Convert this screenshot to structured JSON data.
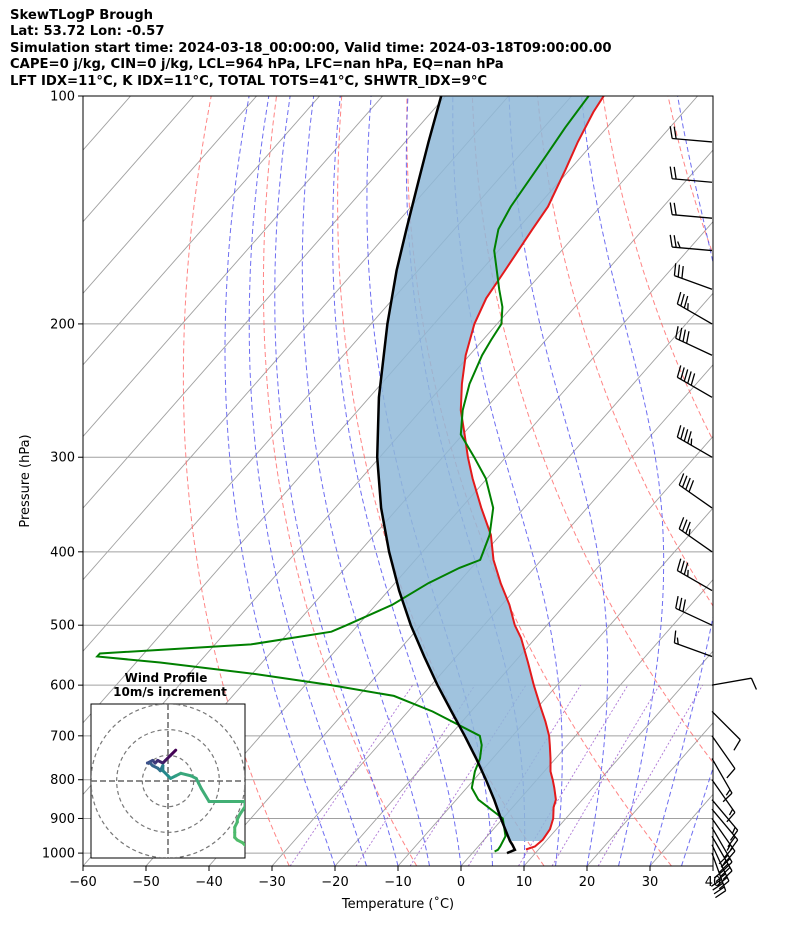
{
  "header": {
    "line1": "SkewTLogP Brough",
    "line2": "Lat: 53.72   Lon: -0.57",
    "line3": "Simulation start time: 2024-03-18_00:00:00, Valid time: 2024-03-18T09:00:00.00",
    "line4": "CAPE=0 j/kg, CIN=0 j/kg, LCL=964 hPa, LFC=nan hPa, EQ=nan hPa",
    "line5": "LFT IDX=11°C, K IDX=11°C, TOTAL TOTS=41°C, SHWTR_IDX=9°C"
  },
  "colors": {
    "temperature": "#e31a1c",
    "dewpoint": "#008000",
    "parcel": "#000000",
    "cape_fill": "#8fb8d8",
    "dry_adiabat": "#ff6666",
    "moist_adiabat": "#5555ee",
    "mixing_ratio": "#9955cc",
    "isotherm": "#a0a0a0",
    "isobar": "#a0a0a0"
  },
  "chart_data": [
    {
      "type": "line",
      "chart_kind": "skew-T log-P",
      "xlabel": "Temperature (˚C)",
      "ylabel": "Pressure (hPa)",
      "xlim": [
        -60,
        40
      ],
      "ylim": [
        1040,
        100
      ],
      "y_scale": "log",
      "x_ticks": [
        "−60",
        "−50",
        "−40",
        "−30",
        "−20",
        "−10",
        "0",
        "10",
        "20",
        "30",
        "40"
      ],
      "x_tick_values": [
        -60,
        -50,
        -40,
        -30,
        -20,
        -10,
        0,
        10,
        20,
        30,
        40
      ],
      "y_ticks": [
        "100",
        "200",
        "300",
        "400",
        "500",
        "600",
        "700",
        "800",
        "900",
        "1000"
      ],
      "y_tick_values": [
        100,
        200,
        300,
        400,
        500,
        600,
        700,
        800,
        900,
        1000
      ],
      "grid": true,
      "series": [
        {
          "key": "temperature",
          "pressure": [
            989,
            980,
            960,
            930,
            900,
            870,
            850,
            820,
            800,
            780,
            750,
            720,
            700,
            670,
            640,
            600,
            560,
            520,
            500,
            470,
            440,
            410,
            380,
            350,
            320,
            300,
            280,
            260,
            240,
            220,
            200,
            185,
            170,
            150,
            140,
            125,
            115,
            105,
            100
          ],
          "temperature": [
            8.0,
            9.0,
            9.3,
            9.0,
            8.0,
            6.5,
            5.8,
            3.9,
            2.5,
            1.0,
            -0.8,
            -2.8,
            -4.2,
            -6.8,
            -9.7,
            -13.7,
            -17.8,
            -22.3,
            -25.1,
            -28.8,
            -33.2,
            -37.6,
            -41.5,
            -46.8,
            -52.3,
            -56.0,
            -59.7,
            -63.7,
            -67.2,
            -70.6,
            -73.6,
            -75.3,
            -76.2,
            -77.6,
            -78.3,
            -80.7,
            -82.6,
            -84.3,
            -84.9
          ]
        },
        {
          "key": "dewpoint",
          "pressure": [
            995,
            990,
            980,
            950,
            900,
            850,
            820,
            780,
            750,
            720,
            700,
            650,
            620,
            600,
            580,
            560,
            550,
            545,
            530,
            510,
            500,
            470,
            440,
            420,
            410,
            380,
            350,
            320,
            300,
            280,
            260,
            240,
            220,
            210,
            200,
            190,
            180,
            170,
            160,
            150,
            140,
            120,
            110,
            100
          ],
          "temperature": [
            3.3,
            3.6,
            3.5,
            2.9,
            0.0,
            -6.5,
            -9.2,
            -11.0,
            -12.0,
            -13.6,
            -15.2,
            -26.1,
            -34.4,
            -45.9,
            -59.5,
            -76.2,
            -87.0,
            -87.0,
            -64.3,
            -53.3,
            -51.8,
            -47.4,
            -44.7,
            -41.9,
            -39.7,
            -41.7,
            -44.9,
            -50.2,
            -55.0,
            -60.3,
            -63.4,
            -66.0,
            -68.0,
            -68.7,
            -69.3,
            -71.5,
            -74.5,
            -77.5,
            -80.7,
            -83.0,
            -84.2,
            -85.7,
            -86.6,
            -87.3
          ]
        },
        {
          "key": "parcel",
          "pressure": [
            1000,
            990,
            975,
            964,
            950,
            900,
            850,
            800,
            750,
            700,
            650,
            600,
            550,
            500,
            450,
            400,
            350,
            300,
            250,
            200,
            170,
            150,
            130,
            115,
            100
          ],
          "temperature": [
            5.5,
            6.3,
            5.2,
            4.3,
            3.3,
            -0.3,
            -4.0,
            -8.1,
            -12.6,
            -17.6,
            -23.1,
            -29.0,
            -35.1,
            -41.6,
            -48.3,
            -55.3,
            -62.7,
            -70.4,
            -78.5,
            -87.4,
            -93.4,
            -97.6,
            -102.3,
            -106.3,
            -110.7
          ]
        }
      ],
      "wind_barbs_label": "wind barbs right edge (kt)",
      "wind_barbs": [
        {
          "p": 1000,
          "spd": 40,
          "dir": 160
        },
        {
          "p": 975,
          "spd": 40,
          "dir": 155
        },
        {
          "p": 950,
          "spd": 35,
          "dir": 150
        },
        {
          "p": 925,
          "spd": 30,
          "dir": 150
        },
        {
          "p": 900,
          "spd": 25,
          "dir": 145
        },
        {
          "p": 875,
          "spd": 20,
          "dir": 140
        },
        {
          "p": 850,
          "spd": 15,
          "dir": 140
        },
        {
          "p": 800,
          "spd": 15,
          "dir": 145
        },
        {
          "p": 750,
          "spd": 15,
          "dir": 150
        },
        {
          "p": 700,
          "spd": 10,
          "dir": 145
        },
        {
          "p": 650,
          "spd": 10,
          "dir": 135
        },
        {
          "p": 600,
          "spd": 10,
          "dir": 80
        },
        {
          "p": 550,
          "spd": 15,
          "dir": 290
        },
        {
          "p": 500,
          "spd": 30,
          "dir": 295
        },
        {
          "p": 450,
          "spd": 35,
          "dir": 300
        },
        {
          "p": 400,
          "spd": 35,
          "dir": 305
        },
        {
          "p": 350,
          "spd": 40,
          "dir": 305
        },
        {
          "p": 300,
          "spd": 45,
          "dir": 300
        },
        {
          "p": 250,
          "spd": 50,
          "dir": 300
        },
        {
          "p": 220,
          "spd": 40,
          "dir": 295
        },
        {
          "p": 200,
          "spd": 35,
          "dir": 300
        },
        {
          "p": 180,
          "spd": 30,
          "dir": 290
        },
        {
          "p": 160,
          "spd": 25,
          "dir": 275
        },
        {
          "p": 145,
          "spd": 20,
          "dir": 275
        },
        {
          "p": 130,
          "spd": 20,
          "dir": 275
        },
        {
          "p": 115,
          "spd": 20,
          "dir": 275
        }
      ]
    },
    {
      "type": "line",
      "chart_kind": "hodograph",
      "title": "Wind Profile\n10m/s increment",
      "title_lines": [
        "Wind Profile",
        "10m/s increment"
      ],
      "xlim": [
        -30,
        30
      ],
      "ylim": [
        -30,
        30
      ],
      "rings": [
        10,
        20,
        30
      ],
      "path_u": [
        3,
        1,
        -1,
        -2,
        -4,
        -5,
        -6,
        -8,
        -7,
        -6,
        -4,
        -3,
        -2,
        -2,
        0,
        1,
        3,
        5,
        9,
        11,
        12,
        13,
        16,
        20,
        25,
        30,
        30,
        28,
        27,
        27,
        26,
        26,
        26,
        27,
        29,
        30
      ],
      "path_v": [
        12,
        10,
        8,
        7,
        8,
        7,
        8,
        7,
        7,
        6,
        5,
        4,
        6,
        4,
        2,
        1,
        2,
        3,
        2,
        1,
        -1,
        -3,
        -8,
        -8,
        -8,
        -8,
        -10,
        -13,
        -15,
        -16,
        -18,
        -20,
        -22,
        -23,
        -24,
        -25
      ]
    }
  ]
}
